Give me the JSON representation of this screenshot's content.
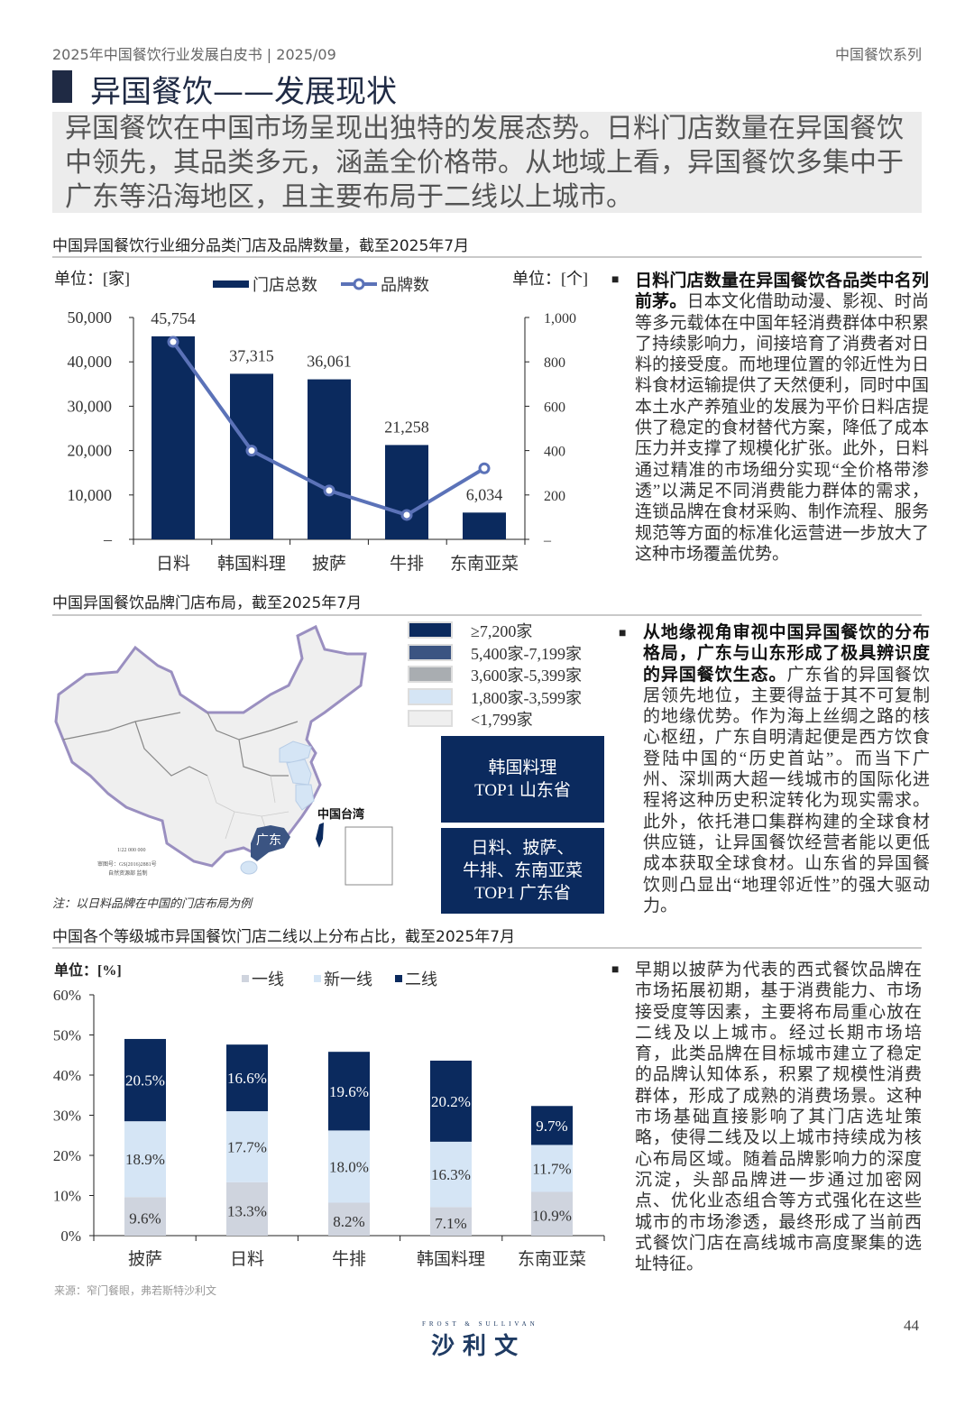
{
  "header": {
    "left": "2025年中国餐饮行业发展白皮书 | 2025/09",
    "right": "中国餐饮系列"
  },
  "title": "异国餐饮——发展现状",
  "summary": "异国餐饮在中国市场呈现出独特的发展态势。日料门店数量在异国餐饮中领先，其品类多元，涵盖全价格带。从地域上看，异国餐饮多集中于广东等沿海地区，且主要布局于二线以上城市。",
  "sections": [
    {
      "title": "中国异国餐饮行业细分品类门店及品牌数量，截至2025年7月"
    },
    {
      "title": "中国异国餐饮品牌门店布局，截至2025年7月"
    },
    {
      "title": "中国各个等级城市异国餐饮门店二线以上分布占比，截至2025年7月"
    }
  ],
  "paragraphs": [
    {
      "bold": "日料门店数量在异国餐饮各品类中名列前茅。",
      "text": "日本文化借助动漫、影视、时尚等多元载体在中国年轻消费群体中积累了持续影响力，间接培育了消费者对日料的接受度。而地理位置的邻近性为日料食材运输提供了天然便利，同时中国本土水产养殖业的发展为平价日料店提供了稳定的食材替代方案，降低了成本压力并支撑了规模化扩张。此外，日料通过精准的市场细分实现“全价格带渗透”以满足不同消费能力群体的需求，连锁品牌在食材采购、制作流程、服务规范等方面的标准化运营进一步放大了这种市场覆盖优势。"
    },
    {
      "bold": "从地缘视角审视中国异国餐饮的分布格局，广东与山东形成了极具辨识度的异国餐饮生态。",
      "text": "广东省的异国餐饮居领先地位，主要得益于其不可复制的地缘优势。作为海上丝绸之路的核心枢纽，广东自明清起便是西方饮食登陆中国的“历史首站”。而当下广州、深圳两大超一线城市的国际化进程将这种历史积淀转化为现实需求。此外，依托港口集群构建的全球食材供应链，让异国餐饮经营者能以更低成本获取全球食材。山东省的异国餐饮则凸显出“地理邻近性”的强大驱动力。"
    },
    {
      "bold": "",
      "text": "早期以披萨为代表的西式餐饮品牌在市场拓展初期，基于消费能力、市场接受度等因素，主要将布局重心放在二线及以上城市。经过长期市场培育，此类品牌在目标城市建立了稳定的品牌认知体系，积累了规模性消费群体，形成了成熟的消费场景。这种市场基础直接影响了其门店选址策略，使得二线及以上城市持续成为核心布局区域。随着品牌影响力的深度沉淀，头部品牌进一步通过加密网点、优化业态组合等方式强化在这些城市的市场渗透，最终形成了当前西式餐饮门店在高线城市高度聚集的选址特征。"
    }
  ],
  "bullet_symbol": "■",
  "map": {
    "legend": [
      {
        "label": "≥7,200家",
        "color": "#0b2a5e"
      },
      {
        "label": "5,400家-7,199家",
        "color": "#3b5482"
      },
      {
        "label": "3,600家-5,399家",
        "color": "#a9adb1"
      },
      {
        "label": "1,800家-3,599家",
        "color": "#d5e5f5"
      },
      {
        "label": "<1,799家",
        "color": "#efefef"
      }
    ],
    "labels": {
      "guangdong": "广东",
      "taiwan": "中国台湾"
    },
    "scale": "1∶22 000 000",
    "approval": "审图号：GS(2016)2881号",
    "issuer": "自然资源部 监制",
    "note": "注：以日料品牌在中国的门店布局为例",
    "top_boxes": [
      {
        "line1": "韩国料理",
        "line2": "TOP1 山东省"
      },
      {
        "line1": "日料、披萨、",
        "line2": "牛排、东南亚菜",
        "line3": "TOP1 广东省"
      }
    ]
  },
  "source": "来源：窄门餐眼，弗若斯特沙利文",
  "footer": {
    "logo_en": "FROST & SULLIVAN",
    "logo_cn": "沙 利 文",
    "page": "44"
  },
  "chart_data": [
    {
      "type": "bar",
      "categories": [
        "日料",
        "韩国料理",
        "披萨",
        "牛排",
        "东南亚菜"
      ],
      "series": [
        {
          "name": "门店总数",
          "type": "bar",
          "axis": "left",
          "values": [
            45754,
            37315,
            36061,
            21258,
            6034
          ],
          "color": "#0b2a5e"
        },
        {
          "name": "品牌数",
          "type": "line",
          "axis": "right",
          "values": [
            890,
            400,
            220,
            110,
            320
          ],
          "color": "#5b72b8"
        }
      ],
      "left_unit": "单位：[家]",
      "right_unit": "单位：[个]",
      "ylim_left": [
        0,
        50000
      ],
      "ylim_right": [
        0,
        1000
      ],
      "left_ticks": [
        "–",
        "10,000",
        "20,000",
        "30,000",
        "40,000",
        "50,000"
      ],
      "right_ticks": [
        "–",
        "200",
        "400",
        "600",
        "800",
        "1,000"
      ],
      "data_labels": [
        "45,754",
        "37,315",
        "36,061",
        "21,258",
        "6,034"
      ],
      "legend": "top",
      "grid": false
    },
    {
      "type": "bar",
      "stacked": true,
      "categories": [
        "披萨",
        "日料",
        "牛排",
        "韩国料理",
        "东南亚菜"
      ],
      "series": [
        {
          "name": "一线",
          "values": [
            9.6,
            13.3,
            8.2,
            7.1,
            10.9
          ],
          "color": "#cfd4de",
          "labels": [
            "9.6%",
            "13.3%",
            "8.2%",
            "7.1%",
            "10.9%"
          ]
        },
        {
          "name": "新一线",
          "values": [
            18.9,
            17.7,
            18.0,
            16.3,
            11.7
          ],
          "color": "#d5e5f5",
          "labels": [
            "18.9%",
            "17.7%",
            "18.0%",
            "16.3%",
            "11.7%"
          ]
        },
        {
          "name": "二线",
          "values": [
            20.5,
            16.6,
            19.6,
            20.2,
            9.7
          ],
          "color": "#0b2a5e",
          "labels": [
            "20.5%",
            "16.6%",
            "19.6%",
            "20.2%",
            "9.7%"
          ]
        }
      ],
      "unit": "单位：[%]",
      "ylim": [
        0,
        60
      ],
      "y_ticks": [
        "0%",
        "10%",
        "20%",
        "30%",
        "40%",
        "50%",
        "60%"
      ],
      "legend": "top",
      "grid": false
    }
  ]
}
